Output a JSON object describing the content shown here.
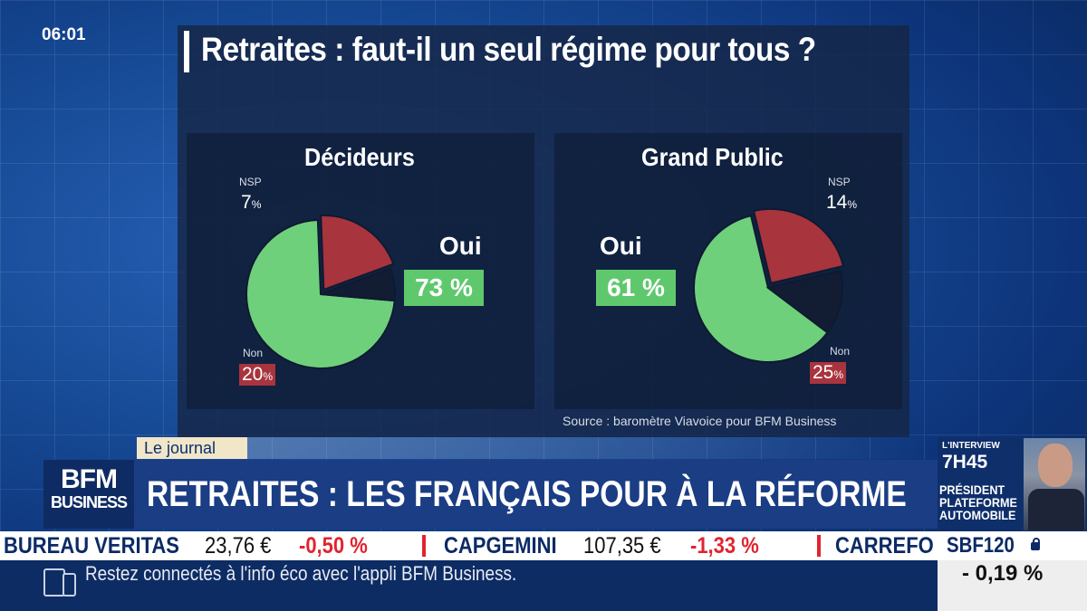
{
  "clock": "06:01",
  "title": "Retraites : faut-il un seul régime pour tous ?",
  "chart_data": [
    {
      "type": "pie",
      "title": "Décideurs",
      "slices": [
        {
          "label": "Oui",
          "value": 73,
          "display": "73 %",
          "color": "#6fd07b"
        },
        {
          "label": "Non",
          "value": 20,
          "display": "20",
          "color": "#a8343e"
        },
        {
          "label": "NSP",
          "value": 7,
          "display": "7",
          "color": "#121c33"
        }
      ]
    },
    {
      "type": "pie",
      "title": "Grand Public",
      "slices": [
        {
          "label": "Oui",
          "value": 61,
          "display": "61 %",
          "color": "#6fd07b"
        },
        {
          "label": "Non",
          "value": 25,
          "display": "25",
          "color": "#a8343e"
        },
        {
          "label": "NSP",
          "value": 14,
          "display": "14",
          "color": "#121c33"
        }
      ]
    }
  ],
  "pct_suffix": "%",
  "source": "Source : baromètre Viavoice pour BFM Business",
  "journal_tag": "Le journal",
  "logo": {
    "top": "BFM",
    "bottom": "BUSINESS"
  },
  "headline": "RETRAITES : LES FRANÇAIS POUR À LA RÉFORME",
  "interview": {
    "tag": "L'INTERVIEW",
    "time": "7H45",
    "lines": [
      "PRÉSIDENT",
      "PLATEFORME",
      "AUTOMOBILE"
    ]
  },
  "ticker": [
    {
      "name": "BUREAU VERITAS",
      "price": "23,76 €",
      "change": "-0,50 %"
    },
    {
      "name": "CAPGEMINI",
      "price": "107,35 €",
      "change": "-1,33 %"
    },
    {
      "name": "CARREFO",
      "price": "",
      "change": ""
    }
  ],
  "index": {
    "name": "SBF120",
    "change": "- 0,19 %"
  },
  "bottom_text": "Restez connectés à l'info éco avec l'appli BFM Business.",
  "colors": {
    "oui": "#5fc86d",
    "non": "#a8343e",
    "nsp": "#121c33",
    "ticker_red": "#e0242f"
  }
}
